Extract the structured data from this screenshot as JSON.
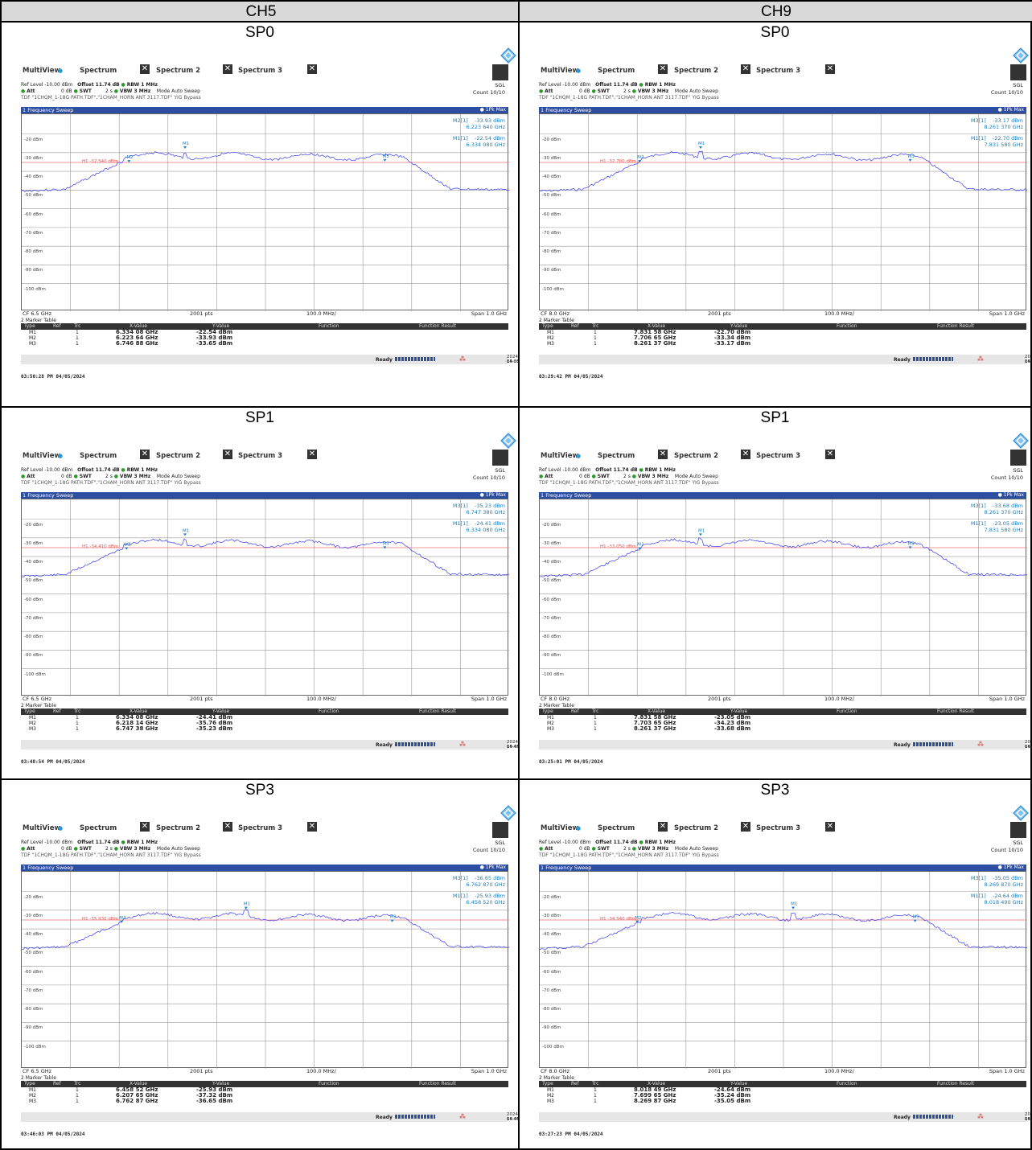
{
  "columns": [
    "CH5",
    "CH9"
  ],
  "panels": [
    {
      "sp": "SP0",
      "ch": "CH5",
      "cf": "CF 6.5 GHz",
      "span": "Span 1.0 GHz",
      "h1": "H1 -32.540 dBm",
      "m_right": [
        [
          "M2[1]",
          "-33.93 dBm",
          "6.223 640 GHz"
        ],
        [
          "M1[1]",
          "-22.54 dBm",
          "6.334 080 GHz"
        ]
      ],
      "markers": [
        [
          "M1",
          "1",
          "6.334 08 GHz",
          "-22.54 dBm"
        ],
        [
          "M2",
          "1",
          "6.223 64 GHz",
          "-33.93 dBm"
        ],
        [
          "M3",
          "1",
          "6.746 88 GHz",
          "-33.65 dBm"
        ]
      ],
      "date": "2024-04-05",
      "time": "15:50:28",
      "screenshot": "03:50:28 PM  04/05/2024"
    },
    {
      "sp": "SP0",
      "ch": "CH9",
      "cf": "CF 8.0 GHz",
      "span": "Span 1.0 GHz",
      "h1": "H1 -32.700 dBm",
      "m_right": [
        [
          "M3[1]",
          "-33.17 dBm",
          "8.261 370 GHz"
        ],
        [
          "M1[1]",
          "-22.70 dBm",
          "7.831 580 GHz"
        ]
      ],
      "markers": [
        [
          "M1",
          "1",
          "7.831 58 GHz",
          "-22.70 dBm"
        ],
        [
          "M2",
          "1",
          "7.706 65 GHz",
          "-33.34 dBm"
        ],
        [
          "M3",
          "1",
          "8.261 37 GHz",
          "-33.17 dBm"
        ]
      ],
      "date": "2024-04-05",
      "time": "15:29:42",
      "screenshot": "03:29:42 PM  04/05/2024"
    },
    {
      "sp": "SP1",
      "ch": "CH5",
      "cf": "CF 6.5 GHz",
      "span": "Span 1.0 GHz",
      "h1": "H1 -34.410 dBm",
      "m_right": [
        [
          "M3[1]",
          "-35.23 dBm",
          "6.747 380 GHz"
        ],
        [
          "M1[1]",
          "-24.41 dBm",
          "6.334 080 GHz"
        ]
      ],
      "markers": [
        [
          "M1",
          "1",
          "6.334 08 GHz",
          "-24.41 dBm"
        ],
        [
          "M2",
          "1",
          "6.218 14 GHz",
          "-35.76 dBm"
        ],
        [
          "M3",
          "1",
          "6.747 38 GHz",
          "-35.23 dBm"
        ]
      ],
      "date": "2024-04-05",
      "time": "15:48:54",
      "screenshot": "03:48:54 PM  04/05/2024"
    },
    {
      "sp": "SP1",
      "ch": "CH9",
      "cf": "CF 8.0 GHz",
      "span": "Span 1.0 GHz",
      "h1": "H1 -33.050 dBm",
      "m_right": [
        [
          "M3[1]",
          "-33.68 dBm",
          "8.261 370 GHz"
        ],
        [
          "M1[1]",
          "-23.05 dBm",
          "7.831 580 GHz"
        ]
      ],
      "markers": [
        [
          "M1",
          "1",
          "7.831 58 GHz",
          "-23.05 dBm"
        ],
        [
          "M2",
          "1",
          "7.703 65 GHz",
          "-34.23 dBm"
        ],
        [
          "M3",
          "1",
          "8.261 37 GHz",
          "-33.68 dBm"
        ]
      ],
      "date": "2024-04-05",
      "time": "15:25:01",
      "screenshot": "03:25:01 PM  04/05/2024"
    },
    {
      "sp": "SP3",
      "ch": "CH5",
      "cf": "CF 6.5 GHz",
      "span": "Span 1.0 GHz",
      "h1": "H1 -35.930 dBm",
      "m_right": [
        [
          "M3[1]",
          "-36.65 dBm",
          "6.762 870 GHz"
        ],
        [
          "M1[1]",
          "-25.93 dBm",
          "6.458 520 GHz"
        ]
      ],
      "markers": [
        [
          "M1",
          "1",
          "6.458 52 GHz",
          "-25.93 dBm"
        ],
        [
          "M2",
          "1",
          "6.207 65 GHz",
          "-37.32 dBm"
        ],
        [
          "M3",
          "1",
          "6.762 87 GHz",
          "-36.65 dBm"
        ]
      ],
      "date": "2024-04-05",
      "time": "15:46:03",
      "screenshot": "03:46:03 PM  04/05/2024"
    },
    {
      "sp": "SP3",
      "ch": "CH9",
      "cf": "CF 8.0 GHz",
      "span": "Span 1.0 GHz",
      "h1": "H1 -34.540 dBm",
      "m_right": [
        [
          "M3[1]",
          "-35.05 dBm",
          "8.269 870 GHz"
        ],
        [
          "M1[1]",
          "-24.64 dBm",
          "8.018 490 GHz"
        ]
      ],
      "markers": [
        [
          "M1",
          "1",
          "8.018 49 GHz",
          "-24.64 dBm"
        ],
        [
          "M2",
          "1",
          "7.699 65 GHz",
          "-35.24 dBm"
        ],
        [
          "M3",
          "1",
          "8.269 87 GHz",
          "-35.05 dBm"
        ]
      ],
      "date": "2024-04-05",
      "time": "15:27:23",
      "screenshot": "03:27:23 PM  04/05/2024"
    }
  ],
  "common": {
    "tab_multiview": "MultiView",
    "tab_spectrum": "Spectrum",
    "tab_spectrum2": "Spectrum 2",
    "tab_spectrum3": "Spectrum 3",
    "ref_level": "Ref Level -10.00 dBm",
    "offset": "Offset 11.74 dB",
    "rbw": "RBW 1 MHz",
    "att": "Att",
    "att_val": "0 dB",
    "swt": "SWT",
    "swt_val": "2 s",
    "vbw": "VBW 3 MHz",
    "mode": "Mode Auto Sweep",
    "tdf": "TDF \"1CHQM_1-18G PATH.TDF\",\"1CHAM_HORN ANT 3117.TDF\"  YIG Bypass",
    "sgl": "SGL",
    "count": "Count 10/10",
    "sweep_title": "1 Frequency Sweep",
    "pk_max": "1Pk Max",
    "pts": "2001 pts",
    "div": "100.0 MHz/",
    "marker_table": "2 Marker Table",
    "col_type": "Type",
    "col_ref": "Ref",
    "col_trc": "Trc",
    "col_x": "X-Value",
    "col_y": "Y-Value",
    "col_func": "Function",
    "col_result": "Function Result",
    "ready": "Ready",
    "yticks": [
      "-20 dBm",
      "-30 dBm",
      "-40 dBm",
      "-50 dBm",
      "-60 dBm",
      "-70 dBm",
      "-80 dBm",
      "-90 dBm",
      "-100 dBm"
    ],
    "accent": "#2c4ea3",
    "trace_color": "#3a3af0",
    "line_color": "#f07070",
    "marker_color": "#1a80c4"
  }
}
